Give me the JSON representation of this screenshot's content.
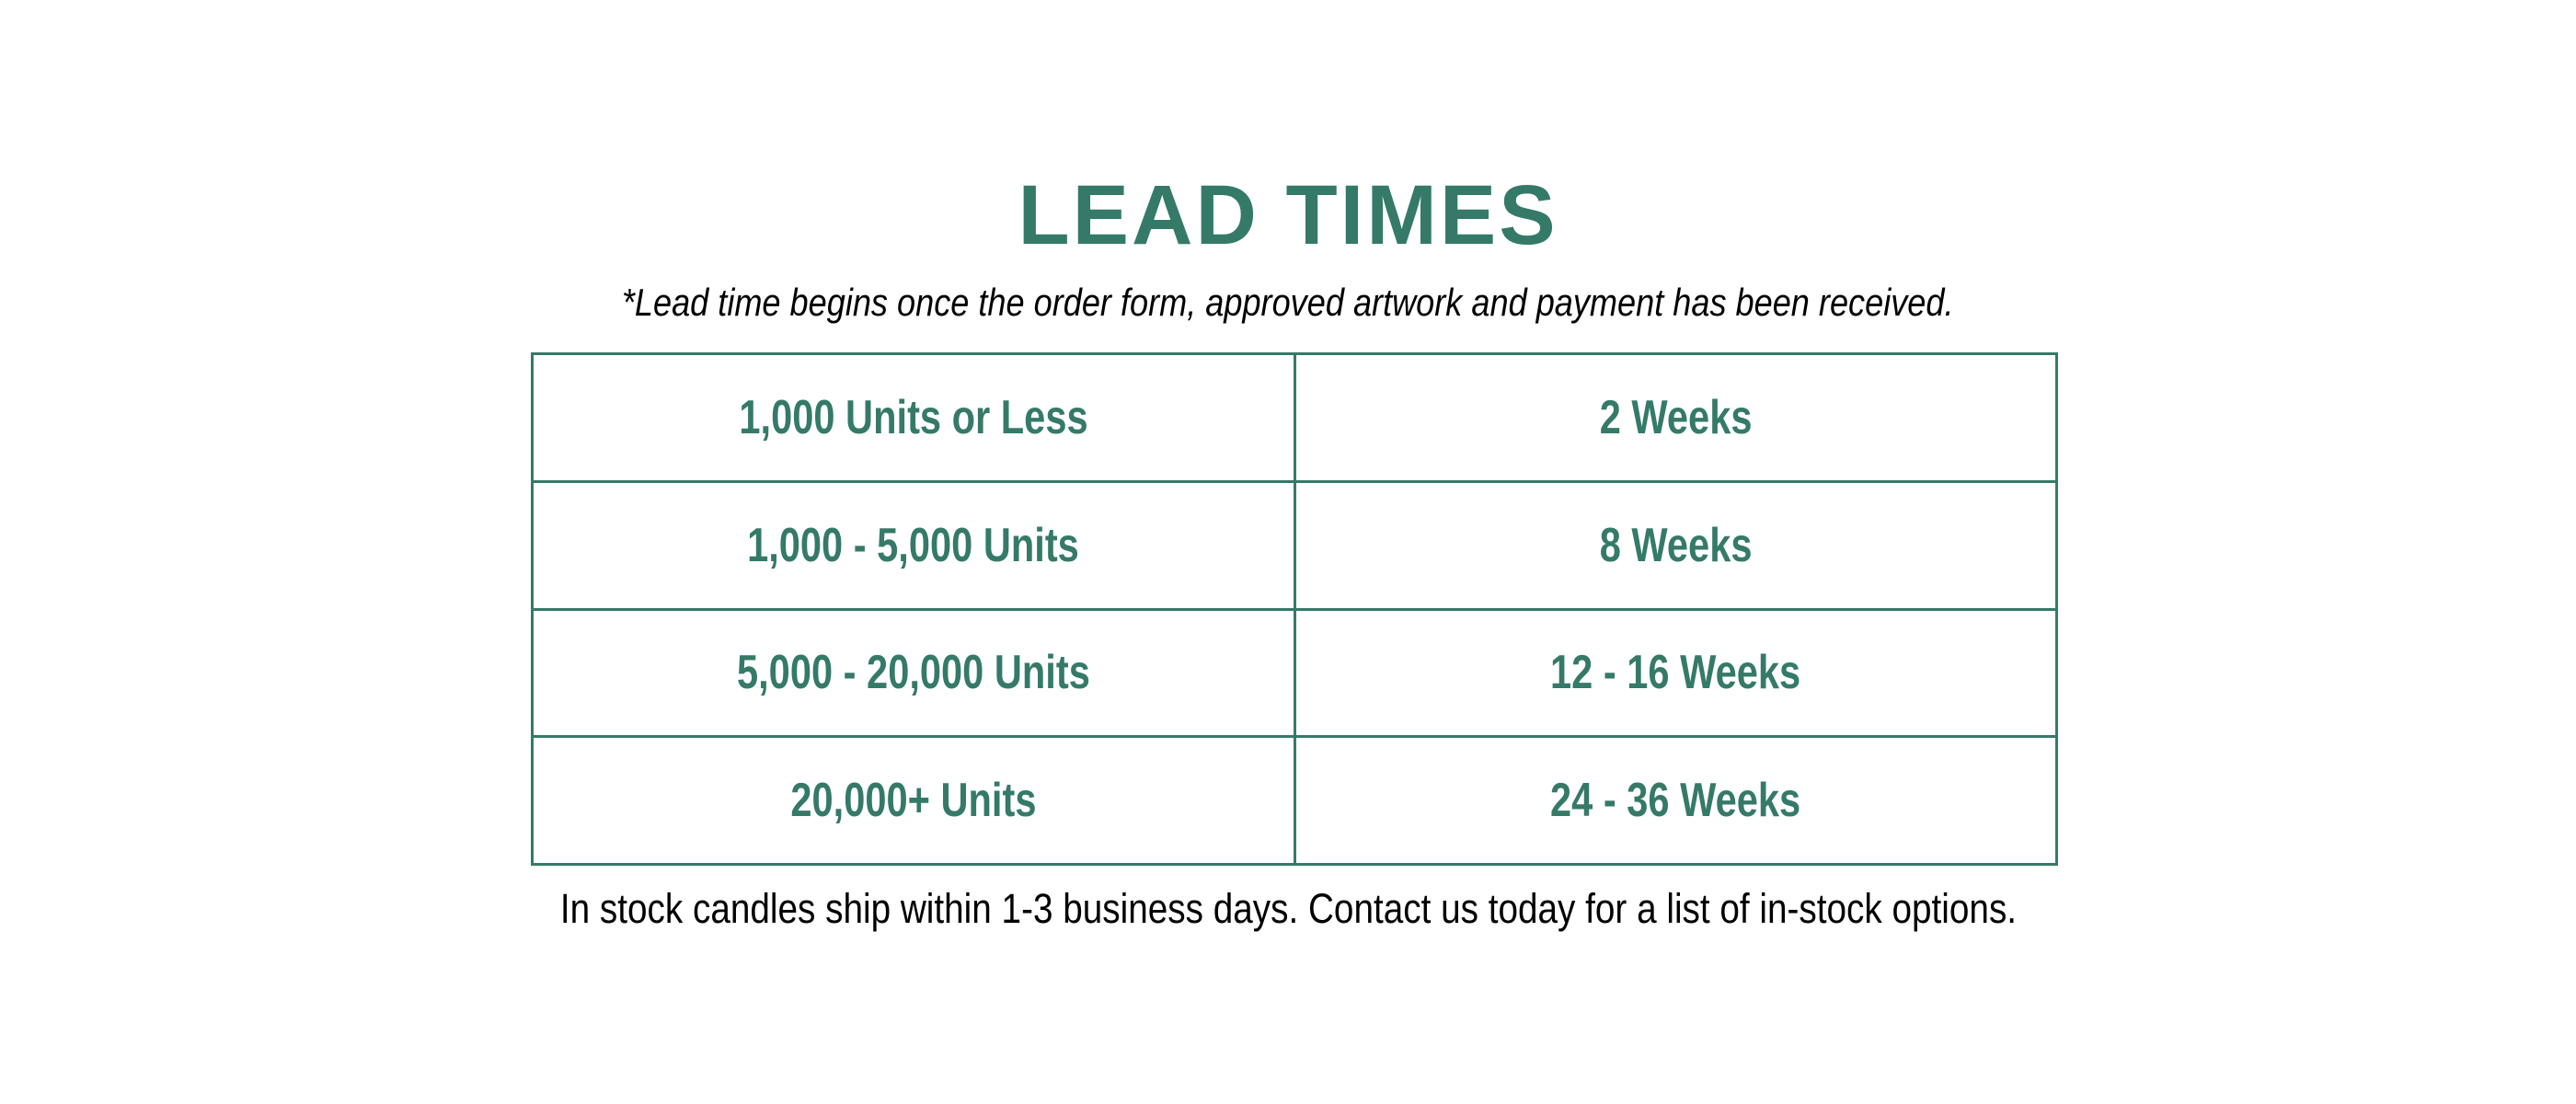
{
  "title": "LEAD TIMES",
  "subtitle": "*Lead time begins once  the order form, approved artwork and payment has been received.",
  "table": {
    "rows": [
      {
        "quantity": "1,000 Units or Less",
        "lead_time": "2 Weeks"
      },
      {
        "quantity": "1,000 - 5,000 Units",
        "lead_time": "8 Weeks"
      },
      {
        "quantity": "5,000 - 20,000 Units",
        "lead_time": "12 - 16 Weeks"
      },
      {
        "quantity": "20,000+ Units",
        "lead_time": "24 - 36 Weeks"
      }
    ]
  },
  "footer": "In stock candles ship within 1-3 business days. Contact us today for a list of in-stock options.",
  "colors": {
    "accent": "#357a68",
    "text": "#000000"
  }
}
